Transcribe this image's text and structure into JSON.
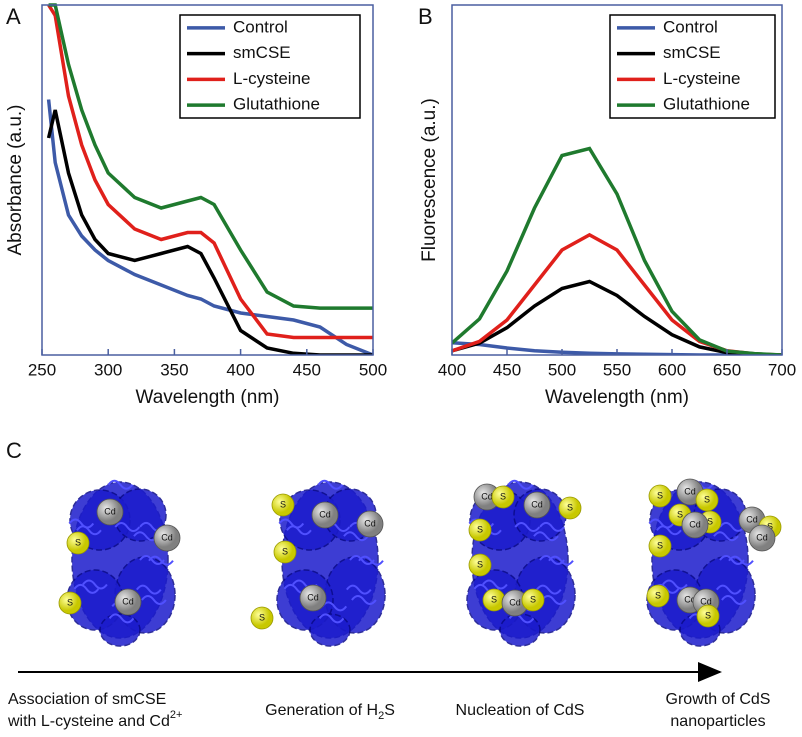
{
  "chart_data": [
    {
      "type": "line",
      "panel": "A",
      "ylabel": "Absorbance (a.u.)",
      "xlabel": "Wavelength (nm)",
      "x": [
        255,
        260,
        270,
        280,
        290,
        300,
        320,
        340,
        360,
        370,
        380,
        400,
        420,
        440,
        460,
        480,
        500
      ],
      "series": [
        {
          "name": "Control",
          "color": "#3d5aa8",
          "values": [
            0.73,
            0.55,
            0.4,
            0.34,
            0.3,
            0.27,
            0.23,
            0.2,
            0.17,
            0.16,
            0.14,
            0.12,
            0.11,
            0.1,
            0.08,
            0.03,
            0.0
          ]
        },
        {
          "name": "smCSE",
          "color": "#000000",
          "values": [
            0.62,
            0.7,
            0.52,
            0.4,
            0.33,
            0.29,
            0.27,
            0.29,
            0.31,
            0.29,
            0.22,
            0.07,
            0.02,
            0.005,
            0.0,
            0.0,
            0.0
          ]
        },
        {
          "name": "L-cysteine",
          "color": "#e0201b",
          "values": [
            1.0,
            0.97,
            0.74,
            0.6,
            0.5,
            0.43,
            0.36,
            0.33,
            0.35,
            0.35,
            0.32,
            0.16,
            0.06,
            0.05,
            0.05,
            0.05,
            0.05
          ]
        },
        {
          "name": "Glutathione",
          "color": "#1f7a2e",
          "values": [
            1.0,
            1.0,
            0.83,
            0.7,
            0.6,
            0.52,
            0.45,
            0.42,
            0.44,
            0.45,
            0.43,
            0.3,
            0.18,
            0.14,
            0.134,
            0.134,
            0.134
          ]
        }
      ],
      "xlim": [
        250,
        500
      ],
      "xticks": [
        250,
        300,
        350,
        400,
        450,
        500
      ],
      "ylim": [
        0,
        1
      ],
      "legend": "upper right"
    },
    {
      "type": "line",
      "panel": "B",
      "ylabel": "Fluorescence (a.u.)",
      "xlabel": "Wavelength (nm)",
      "x": [
        400,
        425,
        450,
        475,
        500,
        525,
        550,
        575,
        600,
        625,
        650,
        675,
        700
      ],
      "series": [
        {
          "name": "Control",
          "color": "#3d5aa8",
          "values": [
            0.035,
            0.03,
            0.02,
            0.012,
            0.008,
            0.005,
            0.003,
            0.002,
            0.001,
            0.0,
            0.0,
            0.0,
            0.0
          ]
        },
        {
          "name": "smCSE",
          "color": "#000000",
          "values": [
            0.012,
            0.034,
            0.078,
            0.14,
            0.19,
            0.21,
            0.17,
            0.11,
            0.058,
            0.023,
            0.007,
            0.002,
            0.0
          ]
        },
        {
          "name": "L-cysteine",
          "color": "#e0201b",
          "values": [
            0.012,
            0.039,
            0.1,
            0.2,
            0.3,
            0.343,
            0.3,
            0.2,
            0.1,
            0.039,
            0.012,
            0.003,
            0.0
          ]
        },
        {
          "name": "Glutathione",
          "color": "#1f7a2e",
          "values": [
            0.034,
            0.103,
            0.24,
            0.42,
            0.57,
            0.59,
            0.46,
            0.27,
            0.125,
            0.043,
            0.011,
            0.004,
            0.0
          ]
        }
      ],
      "xlim": [
        400,
        700
      ],
      "xticks": [
        400,
        450,
        500,
        550,
        600,
        650,
        700
      ],
      "ylim": [
        0,
        1
      ],
      "legend": "upper right"
    }
  ],
  "diagram": {
    "panel": "C",
    "atoms": {
      "sulfur": "S",
      "cadmium": "Cd"
    },
    "stages": [
      {
        "line1": "Association of smCSE",
        "line2": "with L-cysteine and Cd",
        "sup": "2+"
      },
      {
        "text": "Generation of H",
        "sub": "2",
        "tail": "S"
      },
      {
        "text": "Nucleation of CdS"
      },
      {
        "line1": "Growth of CdS",
        "line2": "nanoparticles"
      }
    ]
  }
}
